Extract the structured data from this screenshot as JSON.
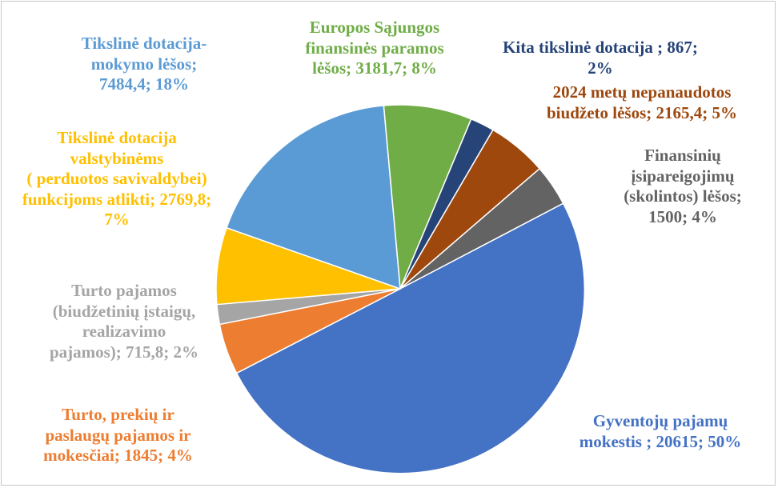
{
  "chart_data": {
    "type": "pie",
    "slices": [
      {
        "label": "Europos Sąjungos\nfinansinės paramos\nlėšos; 3181,7; 8%",
        "value": 3181.7,
        "percent": 8,
        "color": "#70ad47"
      },
      {
        "label": "Kita tikslinė dotacija ; 867;\n2%",
        "value": 867,
        "percent": 2,
        "color": "#264478"
      },
      {
        "label": "2024 metų nepanaudotos\nbiudžeto lėšos; 2165,4; 5%",
        "value": 2165.4,
        "percent": 5,
        "color": "#9e480e"
      },
      {
        "label": "Finansinių\nįsipareigojimų\n(skolintos) lėšos;\n1500; 4%",
        "value": 1500,
        "percent": 4,
        "color": "#636363"
      },
      {
        "label": "Gyventojų pajamų\nmokestis ; 20615; 50%",
        "value": 20615,
        "percent": 50,
        "color": "#4472c4"
      },
      {
        "label": "Turto, prekių ir\npaslaugų  pajamos ir\nmokesčiai; 1845; 4%",
        "value": 1845,
        "percent": 4,
        "color": "#ed7d31"
      },
      {
        "label": "Turto pajamos\n(biudžetinių įstaigų,\nrealizavimo\npajamos); 715,8; 2%",
        "value": 715.8,
        "percent": 2,
        "color": "#a5a5a5"
      },
      {
        "label": "Tikslinė dotacija\nvalstybinėms\n( perduotos savivaldybei)\nfunkcijoms atlikti; 2769,8;\n7%",
        "value": 2769.8,
        "percent": 7,
        "color": "#ffc000"
      },
      {
        "label": "Tikslinė dotacija-\nmokymo lėšos;\n7484,4; 18%",
        "value": 7484.4,
        "percent": 18,
        "color": "#5b9bd5"
      }
    ],
    "label_colors": [
      "#70ad47",
      "#264478",
      "#9e480e",
      "#636363",
      "#4472c4",
      "#ed7d31",
      "#a5a5a5",
      "#ffc000",
      "#5b9bd5"
    ],
    "legend": "none"
  }
}
